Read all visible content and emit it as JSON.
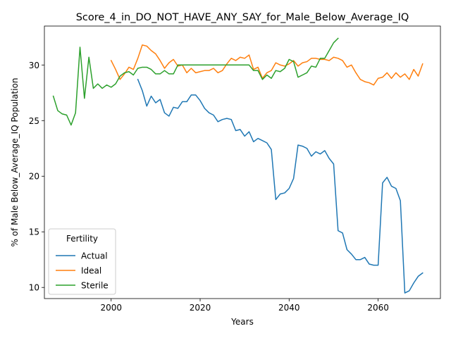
{
  "chart_data": {
    "type": "line",
    "title": "Score_4_in_DO_NOT_HAVE_ANY_SAY_for_Male_Below_Average_IQ",
    "xlabel": "Years",
    "ylabel": "% of Male Below_Average_IQ Population",
    "xlim": [
      1985,
      2074
    ],
    "ylim": [
      9.0,
      33.5
    ],
    "xticks": [
      2000,
      2020,
      2040,
      2060
    ],
    "yticks": [
      10,
      15,
      20,
      25,
      30
    ],
    "grid": false,
    "legend": {
      "title": "Fertility",
      "placement": "lower-left"
    },
    "series": [
      {
        "name": "Actual",
        "color": "#1f77b4",
        "x": [
          2006,
          2007,
          2008,
          2009,
          2010,
          2011,
          2012,
          2013,
          2014,
          2015,
          2016,
          2017,
          2018,
          2019,
          2020,
          2021,
          2022,
          2023,
          2024,
          2025,
          2026,
          2027,
          2028,
          2029,
          2030,
          2031,
          2032,
          2033,
          2034,
          2035,
          2036,
          2037,
          2038,
          2039,
          2040,
          2041,
          2042,
          2043,
          2044,
          2045,
          2046,
          2047,
          2048,
          2049,
          2050,
          2051,
          2052,
          2053,
          2054,
          2055,
          2056,
          2057,
          2058,
          2059,
          2060,
          2061,
          2062,
          2063,
          2064,
          2065,
          2066,
          2067,
          2068,
          2069,
          2070
        ],
        "values": [
          28.7,
          27.7,
          26.3,
          27.2,
          26.6,
          26.9,
          25.7,
          25.4,
          26.2,
          26.1,
          26.7,
          26.7,
          27.3,
          27.3,
          26.8,
          26.1,
          25.7,
          25.5,
          24.9,
          25.1,
          25.2,
          25.1,
          24.1,
          24.2,
          23.6,
          24.0,
          23.1,
          23.4,
          23.2,
          23.0,
          22.4,
          17.9,
          18.4,
          18.5,
          18.9,
          19.8,
          22.8,
          22.7,
          22.5,
          21.8,
          22.2,
          22.0,
          22.3,
          21.6,
          21.1,
          15.1,
          14.9,
          13.4,
          13.0,
          12.5,
          12.5,
          12.7,
          12.1,
          12.0,
          12.0,
          19.4,
          19.9,
          19.1,
          18.9,
          17.8,
          9.5,
          9.7,
          10.4,
          11.0,
          11.3
        ]
      },
      {
        "name": "Ideal",
        "color": "#ff7f0e",
        "x": [
          2000,
          2001,
          2002,
          2003,
          2004,
          2005,
          2006,
          2007,
          2008,
          2009,
          2010,
          2011,
          2012,
          2013,
          2014,
          2015,
          2016,
          2017,
          2018,
          2019,
          2020,
          2021,
          2022,
          2023,
          2024,
          2025,
          2026,
          2027,
          2028,
          2029,
          2030,
          2031,
          2032,
          2033,
          2034,
          2035,
          2036,
          2037,
          2038,
          2039,
          2040,
          2041,
          2042,
          2043,
          2044,
          2045,
          2046,
          2047,
          2048,
          2049,
          2050,
          2051,
          2052,
          2053,
          2054,
          2055,
          2056,
          2057,
          2058,
          2059,
          2060,
          2061,
          2062,
          2063,
          2064,
          2065,
          2066,
          2067,
          2068,
          2069,
          2070
        ],
        "values": [
          30.4,
          29.6,
          28.7,
          29.2,
          29.8,
          29.6,
          30.6,
          31.8,
          31.7,
          31.3,
          31.0,
          30.4,
          29.7,
          30.2,
          30.5,
          29.9,
          30.0,
          29.3,
          29.7,
          29.3,
          29.4,
          29.5,
          29.5,
          29.7,
          29.3,
          29.5,
          30.1,
          30.6,
          30.4,
          30.7,
          30.6,
          30.9,
          29.6,
          29.8,
          28.8,
          29.3,
          29.5,
          30.2,
          30.0,
          29.9,
          30.1,
          30.4,
          29.9,
          30.2,
          30.3,
          30.6,
          30.6,
          30.5,
          30.5,
          30.4,
          30.7,
          30.6,
          30.4,
          29.8,
          30.0,
          29.3,
          28.7,
          28.5,
          28.4,
          28.2,
          28.8,
          28.9,
          29.3,
          28.8,
          29.3,
          28.9,
          29.2,
          28.7,
          29.6,
          29.0,
          30.1
        ]
      },
      {
        "name": "Sterile",
        "color": "#2ca02c",
        "x": [
          1987,
          1988,
          1989,
          1990,
          1991,
          1992,
          1993,
          1994,
          1995,
          1996,
          1997,
          1998,
          1999,
          2000,
          2001,
          2002,
          2003,
          2004,
          2005,
          2006,
          2007,
          2008,
          2009,
          2010,
          2011,
          2012,
          2013,
          2014,
          2015,
          2016,
          2017,
          2018,
          2019,
          2020,
          2021,
          2022,
          2023,
          2024,
          2025,
          2026,
          2027,
          2028,
          2029,
          2030,
          2031,
          2032,
          2033,
          2034,
          2035,
          2036,
          2037,
          2038,
          2039,
          2040,
          2041,
          2042,
          2043,
          2044,
          2045,
          2046,
          2047,
          2048,
          2049,
          2050,
          2051
        ],
        "values": [
          27.2,
          25.9,
          25.6,
          25.5,
          24.6,
          25.7,
          31.6,
          27.0,
          30.7,
          27.9,
          28.3,
          27.9,
          28.2,
          28.0,
          28.3,
          29.0,
          29.3,
          29.4,
          29.1,
          29.7,
          29.8,
          29.8,
          29.6,
          29.2,
          29.2,
          29.5,
          29.2,
          29.2,
          30.0,
          30.0,
          30.0,
          30.0,
          30.0,
          30.0,
          30.0,
          30.0,
          30.0,
          30.0,
          30.0,
          30.0,
          30.0,
          30.0,
          30.0,
          30.0,
          30.0,
          29.5,
          29.5,
          28.7,
          29.1,
          28.8,
          29.5,
          29.4,
          29.7,
          30.5,
          30.3,
          28.9,
          29.1,
          29.3,
          29.9,
          29.8,
          30.6,
          30.6,
          31.3,
          32.0,
          32.4
        ]
      }
    ]
  }
}
